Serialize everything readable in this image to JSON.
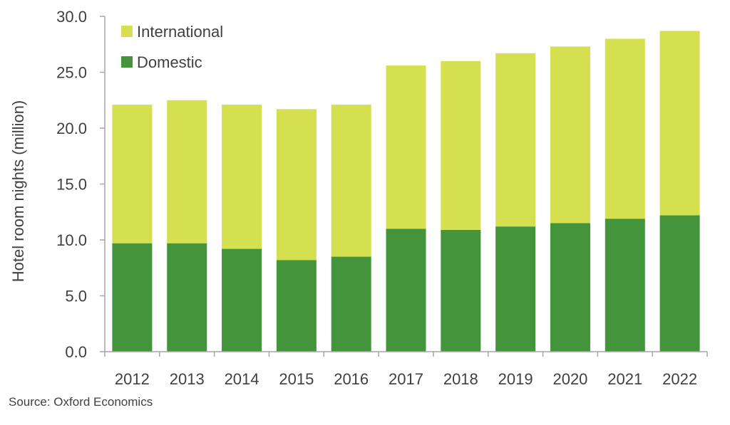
{
  "chart_data": {
    "type": "bar",
    "stacked": true,
    "categories": [
      "2012",
      "2013",
      "2014",
      "2015",
      "2016",
      "2017",
      "2018",
      "2019",
      "2020",
      "2021",
      "2022"
    ],
    "series": [
      {
        "name": "Domestic",
        "color": "#43943b",
        "values": [
          9.7,
          9.7,
          9.2,
          8.2,
          8.5,
          11.0,
          10.9,
          11.2,
          11.5,
          11.9,
          12.2
        ]
      },
      {
        "name": "International",
        "color": "#d4e04f",
        "values": [
          12.4,
          12.8,
          12.9,
          13.5,
          13.6,
          14.6,
          15.1,
          15.5,
          15.8,
          16.1,
          16.5
        ]
      }
    ],
    "ylabel": "Hotel room nights (million)",
    "xlabel": "",
    "ylim": [
      0,
      30
    ],
    "yticks": [
      "0.0",
      "5.0",
      "10.0",
      "15.0",
      "20.0",
      "25.0",
      "30.0"
    ],
    "grid": false,
    "legend": {
      "placement": "top-left",
      "entries": [
        "International",
        "Domestic"
      ]
    }
  },
  "source": "Source:  Oxford Economics"
}
